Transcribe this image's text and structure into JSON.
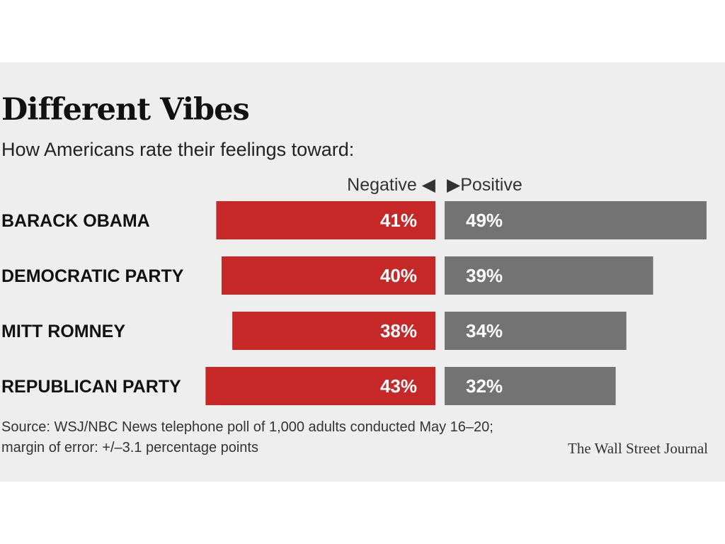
{
  "header": {
    "title": "Different Vibes",
    "subtitle": "How Americans rate their feelings toward:"
  },
  "legend": {
    "negative": "Negative ◀",
    "positive": "▶Positive"
  },
  "colors": {
    "negative": "#c62828",
    "positive": "#737373",
    "panel": "#eeeeee"
  },
  "chart_data": {
    "type": "bar",
    "orientation": "horizontal-diverging",
    "categories": [
      "BARACK OBAMA",
      "DEMOCRATIC PARTY",
      "MITT ROMNEY",
      "REPUBLICAN PARTY"
    ],
    "series": [
      {
        "name": "Negative",
        "values": [
          41,
          40,
          38,
          43
        ],
        "labels": [
          "41%",
          "40%",
          "38%",
          "43%"
        ],
        "color": "#c62828"
      },
      {
        "name": "Positive",
        "values": [
          49,
          39,
          34,
          32
        ],
        "labels": [
          "49%",
          "39%",
          "34%",
          "32%"
        ],
        "color": "#737373"
      }
    ],
    "xlim": [
      0,
      50
    ]
  },
  "footer": {
    "source_line1": "Source: WSJ/NBC News telephone poll of 1,000 adults conducted May 16–20;",
    "source_line2": "margin of error: +/–3.1 percentage points",
    "credit": "The Wall Street Journal"
  }
}
